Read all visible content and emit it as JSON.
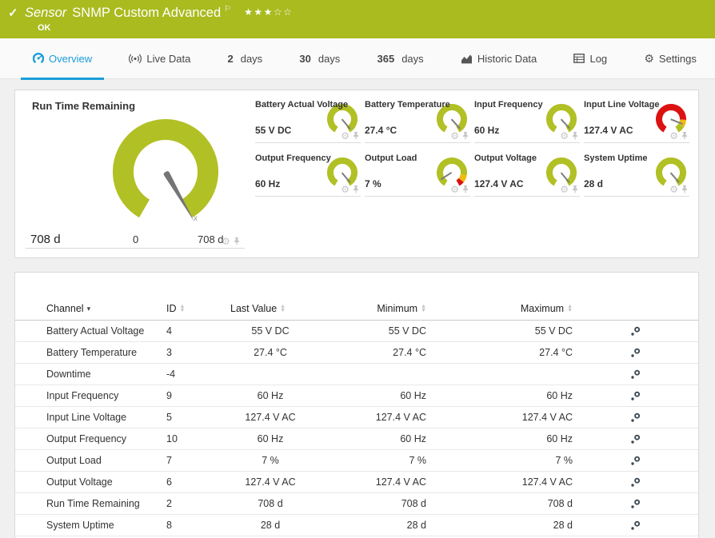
{
  "colors": {
    "brand_green": "#a9bb1e",
    "gauge_green": "#b1c024",
    "warn_yellow": "#eebb0e",
    "alarm_red": "#dc1212",
    "accent_blue": "#1b9dd9"
  },
  "header": {
    "kind": "Sensor",
    "title": "SNMP Custom Advanced",
    "status": "OK",
    "stars_filled": 3,
    "stars_total": 5
  },
  "tabs": [
    {
      "label": "Overview",
      "icon": "gauge-icon",
      "active": true
    },
    {
      "label": "Live Data",
      "icon": "live-data-icon"
    },
    {
      "num": "2",
      "label": "days"
    },
    {
      "num": "30",
      "label": "days"
    },
    {
      "num": "365",
      "label": "days"
    },
    {
      "label": "Historic Data",
      "icon": "historic-data-icon"
    },
    {
      "label": "Log",
      "icon": "log-icon"
    },
    {
      "label": "Settings",
      "icon": "gear-icon"
    }
  ],
  "gauges": {
    "main": {
      "title": "Run Time Remaining",
      "value": "708 d",
      "scale_min": "0",
      "scale_max": "708 d",
      "needle_deg": 150
    },
    "minis": [
      {
        "title": "Battery Actual Voltage",
        "value": "55 V DC",
        "style": "ok",
        "needle_deg": 140
      },
      {
        "title": "Battery Temperature",
        "value": "27.4 °C",
        "style": "ok",
        "needle_deg": 138
      },
      {
        "title": "Input Frequency",
        "value": "60 Hz",
        "style": "ok",
        "needle_deg": 137
      },
      {
        "title": "Input Line Voltage",
        "value": "127.4 V AC",
        "style": "alarm",
        "needle_deg": 112
      },
      {
        "title": "Output Frequency",
        "value": "60 Hz",
        "style": "ok",
        "needle_deg": 140
      },
      {
        "title": "Output Load",
        "value": "7 %",
        "style": "load",
        "needle_deg": 237
      },
      {
        "title": "Output Voltage",
        "value": "127.4 V AC",
        "style": "ok",
        "needle_deg": 140
      },
      {
        "title": "System Uptime",
        "value": "28 d",
        "style": "ok",
        "needle_deg": 139
      }
    ]
  },
  "table": {
    "columns": [
      {
        "label": "Channel",
        "sort": "desc"
      },
      {
        "label": "ID"
      },
      {
        "label": "Last Value"
      },
      {
        "label": "Minimum",
        "align": "right"
      },
      {
        "label": "Maximum",
        "align": "right"
      }
    ],
    "rows": [
      {
        "channel": "Battery Actual Voltage",
        "id": "4",
        "last": "55 V DC",
        "min": "55 V DC",
        "max": "55 V DC"
      },
      {
        "channel": "Battery Temperature",
        "id": "3",
        "last": "27.4 °C",
        "min": "27.4 °C",
        "max": "27.4 °C"
      },
      {
        "channel": "Downtime",
        "id": "-4",
        "last": "",
        "min": "",
        "max": ""
      },
      {
        "channel": "Input Frequency",
        "id": "9",
        "last": "60 Hz",
        "min": "60 Hz",
        "max": "60 Hz"
      },
      {
        "channel": "Input Line Voltage",
        "id": "5",
        "last": "127.4 V AC",
        "min": "127.4 V AC",
        "max": "127.4 V AC"
      },
      {
        "channel": "Output Frequency",
        "id": "10",
        "last": "60 Hz",
        "min": "60 Hz",
        "max": "60 Hz"
      },
      {
        "channel": "Output Load",
        "id": "7",
        "last": "7 %",
        "min": "7 %",
        "max": "7 %"
      },
      {
        "channel": "Output Voltage",
        "id": "6",
        "last": "127.4 V AC",
        "min": "127.4 V AC",
        "max": "127.4 V AC"
      },
      {
        "channel": "Run Time Remaining",
        "id": "2",
        "last": "708 d",
        "min": "708 d",
        "max": "708 d"
      },
      {
        "channel": "System Uptime",
        "id": "8",
        "last": "28 d",
        "min": "28 d",
        "max": "28 d"
      }
    ]
  }
}
